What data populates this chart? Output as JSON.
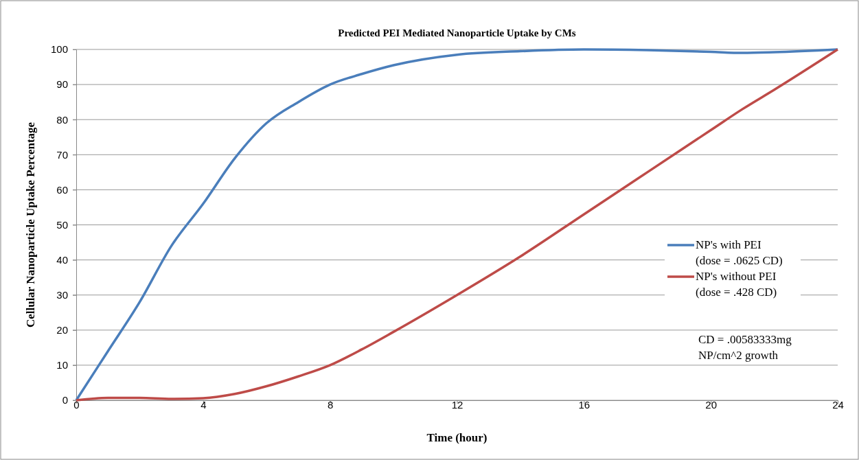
{
  "chart_data": {
    "type": "line",
    "title": "Predicted PEI Mediated Nanoparticle Uptake by CMs",
    "xlabel": "Time (hour)",
    "ylabel": "Cellular Nanoparticle Uptake Percentage",
    "x": [
      0,
      1,
      2,
      3,
      4,
      5,
      6,
      7,
      8,
      9,
      10,
      12,
      14,
      16,
      18,
      20,
      21,
      22,
      24
    ],
    "series": [
      {
        "name": "NP's with PEI\n(dose = .0625 CD)",
        "color": "#4a7ebb",
        "values": [
          0,
          14,
          28,
          44,
          56,
          69,
          79,
          85,
          90,
          93,
          95.5,
          98.5,
          99.5,
          100,
          99.8,
          99.3,
          99,
          99.2,
          100
        ]
      },
      {
        "name": "NP's without PEI\n(dose = .428 CD)",
        "color": "#be4b48",
        "values": [
          0,
          0.7,
          0.7,
          0.4,
          0.6,
          1.8,
          4,
          6.8,
          10,
          14.5,
          19.5,
          30,
          41,
          53,
          65,
          77,
          83,
          88.5,
          100
        ]
      }
    ],
    "xlim": [
      0,
      24
    ],
    "xticks": [
      0,
      4,
      8,
      12,
      16,
      20,
      24
    ],
    "ylim": [
      0,
      100
    ],
    "yticks": [
      0,
      10,
      20,
      30,
      40,
      50,
      60,
      70,
      80,
      90,
      100
    ],
    "grid": "y",
    "legend": "right",
    "marker": "none",
    "line_style": "solid",
    "annotations": [
      "CD = .00583333mg\nNP/cm^2 growth"
    ]
  }
}
